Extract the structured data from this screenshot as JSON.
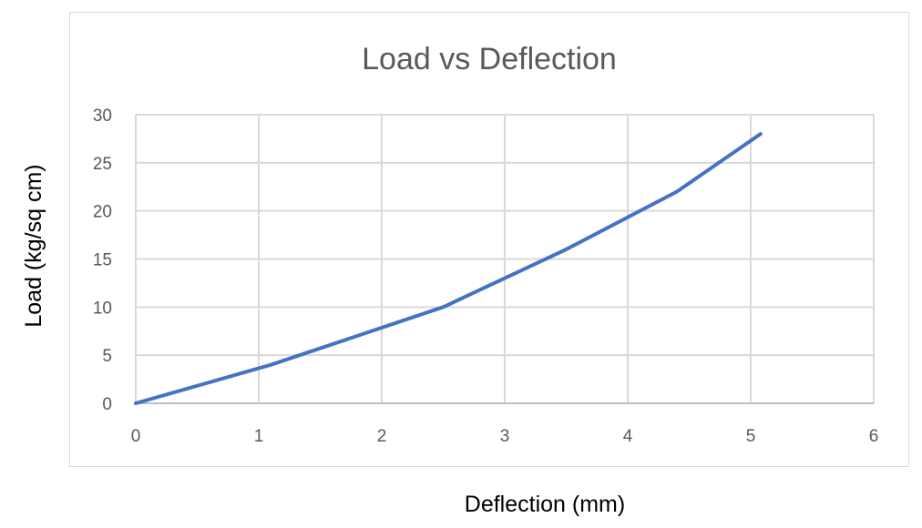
{
  "chart_data": {
    "type": "line",
    "title": "Load vs Deflection",
    "xlabel": "Deflection (mm)",
    "ylabel": "Load (kg/sq cm)",
    "xlim": [
      0,
      6
    ],
    "ylim": [
      0,
      30
    ],
    "xticks": [
      "0",
      "1",
      "2",
      "3",
      "4",
      "5",
      "6"
    ],
    "yticks": [
      "0",
      "5",
      "10",
      "15",
      "20",
      "25",
      "30"
    ],
    "grid": true,
    "legend": "none",
    "series": [
      {
        "color": "#4472C4",
        "x": [
          0,
          1.1,
          2.5,
          3.5,
          4.4,
          5.08
        ],
        "y": [
          0,
          4,
          10,
          16,
          22,
          28
        ]
      }
    ]
  }
}
